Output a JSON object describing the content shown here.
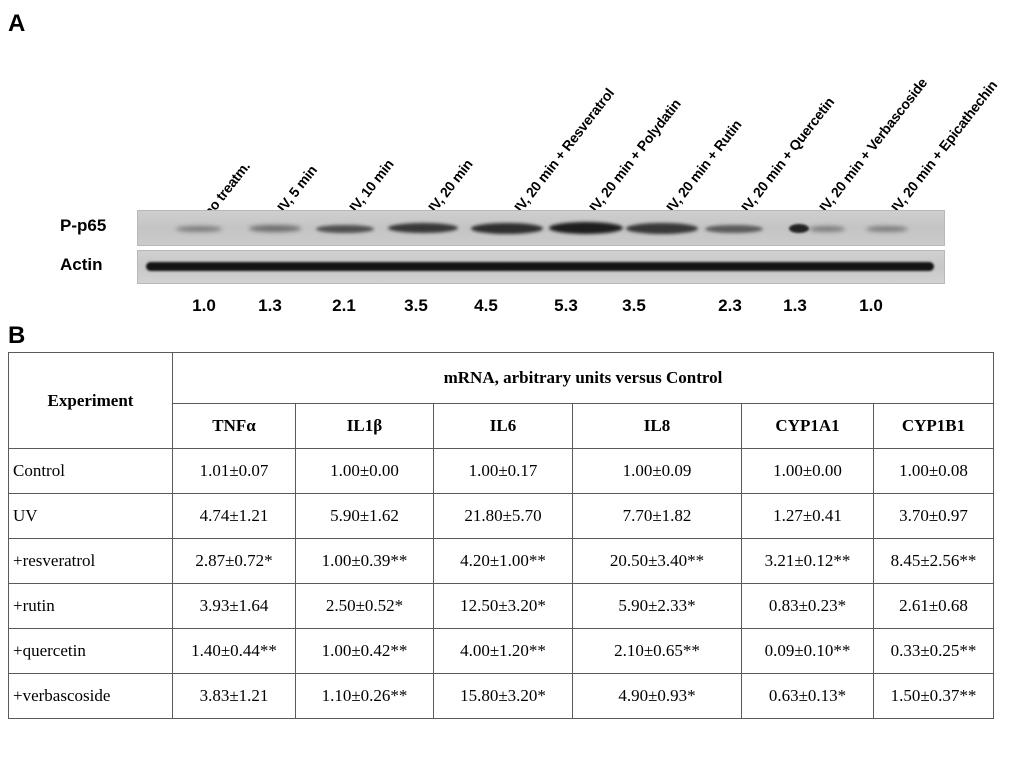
{
  "panel_a": {
    "letter": "A",
    "lanes": [
      "no treatm.",
      "UV, 5 min",
      "UV, 10 min",
      "UV, 20 min",
      "UV, 20 min + Resveratrol",
      "UV, 20 min + Polydatin",
      "UV, 20 min + Rutin",
      "UV, 20 min + Quercetin",
      "UV, 20 min + Verbascoside",
      "UV, 20 min + Epicathechin"
    ],
    "row_labels": {
      "pp65": "P-p65",
      "actin": "Actin"
    },
    "quantification": [
      "1.0",
      "1.3",
      "2.1",
      "3.5",
      "4.5",
      "5.3",
      "3.5",
      "2.3",
      "1.3",
      "1.0"
    ]
  },
  "panel_b": {
    "letter": "B",
    "header_experiment": "Experiment",
    "header_group": "mRNA, arbitrary units versus Control",
    "columns": [
      "TNFα",
      "IL1β",
      "IL6",
      "IL8",
      "CYP1A1",
      "CYP1B1"
    ],
    "rows": [
      {
        "experiment": "Control",
        "values": [
          "1.01±0.07",
          "1.00±0.00",
          "1.00±0.17",
          "1.00±0.09",
          "1.00±0.00",
          "1.00±0.08"
        ]
      },
      {
        "experiment": "UV",
        "values": [
          "4.74±1.21",
          "5.90±1.62",
          "21.80±5.70",
          "7.70±1.82",
          "1.27±0.41",
          "3.70±0.97"
        ]
      },
      {
        "experiment": "+resveratrol",
        "values": [
          "2.87±0.72*",
          "1.00±0.39**",
          "4.20±1.00**",
          "20.50±3.40**",
          "3.21±0.12**",
          "8.45±2.56**"
        ]
      },
      {
        "experiment": "+rutin",
        "values": [
          "3.93±1.64",
          "2.50±0.52*",
          "12.50±3.20*",
          "5.90±2.33*",
          "0.83±0.23*",
          "2.61±0.68"
        ]
      },
      {
        "experiment": "+quercetin",
        "values": [
          "1.40±0.44**",
          "1.00±0.42**",
          "4.00±1.20**",
          "2.10±0.65**",
          "0.09±0.10**",
          "0.33±0.25**"
        ]
      },
      {
        "experiment": "+verbascoside",
        "values": [
          "3.83±1.21",
          "1.10±0.26**",
          "15.80±3.20*",
          "4.90±0.93*",
          "0.63±0.13*",
          "1.50±0.37**"
        ]
      }
    ]
  }
}
